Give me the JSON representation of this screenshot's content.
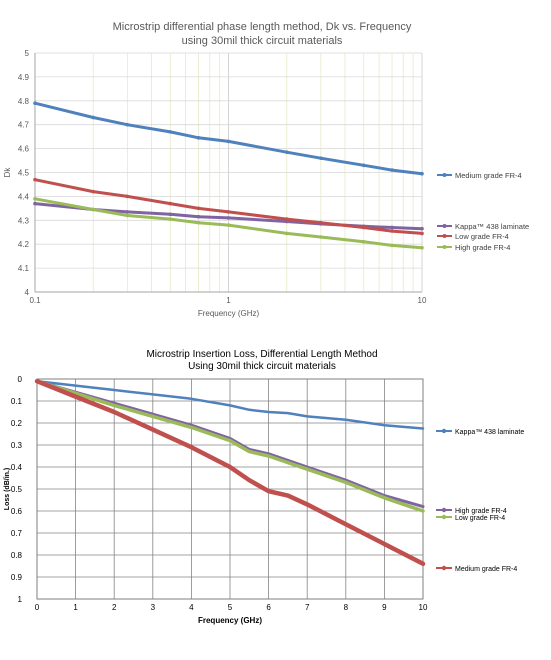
{
  "chart_data": [
    {
      "type": "line",
      "title_lines": [
        "Microstrip differential phase length method, Dk vs. Frequency",
        "using 30mil thick circuit materials"
      ],
      "xlabel": "Frequency (GHz)",
      "ylabel": "Dk",
      "x_scale": "log",
      "xlim": [
        0.1,
        10
      ],
      "ylim": [
        4,
        5
      ],
      "x_tick_labels": [
        "0.1",
        "1",
        "10"
      ],
      "y_tick_labels": [
        "4",
        "4.1",
        "4.2",
        "4.3",
        "4.4",
        "4.5",
        "4.6",
        "4.7",
        "4.8",
        "4.9",
        "5"
      ],
      "grid": true,
      "legend_placement": "right",
      "series": [
        {
          "name": "Medium grade FR-4",
          "legend_text": "Medium grade FR-4",
          "color": "#4f81bd",
          "x": [
            0.1,
            0.2,
            0.3,
            0.5,
            0.7,
            1,
            2,
            3,
            5,
            7,
            10
          ],
          "y": [
            4.79,
            4.73,
            4.7,
            4.67,
            4.645,
            4.63,
            4.585,
            4.56,
            4.53,
            4.51,
            4.495
          ]
        },
        {
          "name": "Kappa™ 438 laminate",
          "legend_text": "Kappa™ 438 laminate",
          "color": "#8064a2",
          "x": [
            0.1,
            0.2,
            0.3,
            0.5,
            0.7,
            1,
            2,
            3,
            5,
            7,
            10
          ],
          "y": [
            4.37,
            4.345,
            4.335,
            4.325,
            4.315,
            4.31,
            4.295,
            4.285,
            4.275,
            4.27,
            4.265
          ]
        },
        {
          "name": "Low grade FR-4",
          "legend_text": "Low grade FR-4",
          "color": "#c0504d",
          "x": [
            0.1,
            0.2,
            0.3,
            0.5,
            0.7,
            1,
            2,
            3,
            5,
            7,
            10
          ],
          "y": [
            4.47,
            4.42,
            4.4,
            4.37,
            4.35,
            4.335,
            4.305,
            4.29,
            4.27,
            4.255,
            4.245
          ]
        },
        {
          "name": "High grade FR-4",
          "legend_text": "High grade FR-4",
          "color": "#9bbb59",
          "x": [
            0.1,
            0.2,
            0.3,
            0.5,
            0.7,
            1,
            2,
            3,
            5,
            7,
            10
          ],
          "y": [
            4.39,
            4.345,
            4.32,
            4.305,
            4.29,
            4.28,
            4.245,
            4.23,
            4.21,
            4.195,
            4.185
          ]
        }
      ]
    },
    {
      "type": "line",
      "title_lines": [
        "Microstrip Insertion Loss, Differential Length Method",
        "Using 30mil thick circuit materials"
      ],
      "xlabel": "Frequency (GHz)",
      "ylabel": "Loss (dB/in.)",
      "y_inverted": true,
      "xlim": [
        0,
        10
      ],
      "ylim": [
        0,
        1
      ],
      "x_tick_labels": [
        "0",
        "1",
        "2",
        "3",
        "4",
        "5",
        "6",
        "7",
        "8",
        "9",
        "10"
      ],
      "y_tick_labels": [
        "0",
        "0.1",
        "0.2",
        "0.3",
        "0.4",
        "0.5",
        "0.6",
        "0.7",
        "0.8",
        "0.9",
        "1"
      ],
      "grid": true,
      "legend_placement": "right",
      "series": [
        {
          "name": "Kappa™ 438 laminate",
          "legend_text": "Kappa™ 438 laminate",
          "color": "#4f81bd",
          "x": [
            0,
            1,
            2,
            3,
            4,
            5,
            5.5,
            6,
            6.5,
            7,
            8,
            9,
            10
          ],
          "y": [
            0.01,
            0.03,
            0.05,
            0.07,
            0.09,
            0.12,
            0.14,
            0.15,
            0.155,
            0.17,
            0.185,
            0.21,
            0.225
          ]
        },
        {
          "name": "High grade FR-4",
          "legend_text": "High grade FR-4",
          "color": "#8064a2",
          "x": [
            0,
            1,
            2,
            3,
            4,
            5,
            5.5,
            6,
            6.5,
            7,
            8,
            9,
            10
          ],
          "y": [
            0.01,
            0.06,
            0.11,
            0.16,
            0.21,
            0.27,
            0.32,
            0.34,
            0.37,
            0.4,
            0.46,
            0.53,
            0.58
          ]
        },
        {
          "name": "Low grade FR-4",
          "legend_text": "Low grade FR-4",
          "color": "#9bbb59",
          "x": [
            0,
            1,
            2,
            3,
            4,
            5,
            5.5,
            6,
            6.5,
            7,
            8,
            9,
            10
          ],
          "y": [
            0.01,
            0.065,
            0.12,
            0.17,
            0.22,
            0.28,
            0.33,
            0.35,
            0.38,
            0.41,
            0.47,
            0.54,
            0.6
          ]
        },
        {
          "name": "Medium grade FR-4",
          "legend_text": "Medium grade FR-4",
          "color": "#c0504d",
          "x": [
            0,
            1,
            2,
            3,
            4,
            5,
            5.5,
            6,
            6.5,
            7,
            8,
            9,
            10
          ],
          "y": [
            0.01,
            0.08,
            0.15,
            0.23,
            0.31,
            0.4,
            0.46,
            0.51,
            0.53,
            0.57,
            0.66,
            0.75,
            0.84
          ]
        }
      ]
    }
  ]
}
